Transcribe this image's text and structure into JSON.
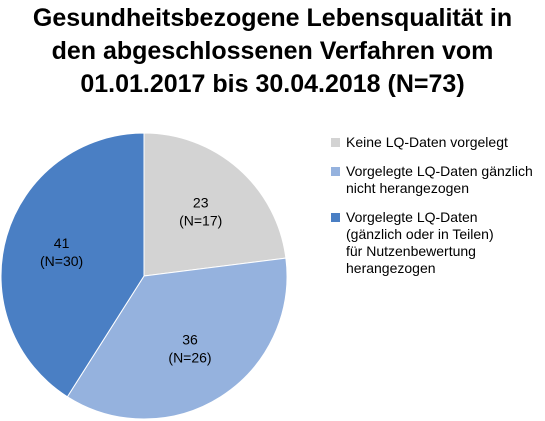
{
  "title_lines": [
    "Gesundheitsbezogene Lebensqualität in",
    "den abgeschlossenen Verfahren vom",
    "01.01.2017 bis 30.04.2018 (N=73)"
  ],
  "chart_data": {
    "type": "pie",
    "title": "Gesundheitsbezogene Lebensqualität in den abgeschlossenen Verfahren vom 01.01.2017 bis 30.04.2018 (N=73)",
    "start_angle_deg": 0,
    "direction": "clockwise",
    "legend_position": "right",
    "slices": [
      {
        "label": "Keine LQ-Daten vorgelegt",
        "value": 23,
        "count_label": "(N=17)",
        "color": "#d3d3d3"
      },
      {
        "label": "Vorgelegte LQ-Daten gänzlich\nnicht herangezogen",
        "value": 36,
        "count_label": "(N=26)",
        "color": "#95b2de"
      },
      {
        "label": "Vorgelegte LQ-Daten\n(gänzlich oder in Teilen)\nfür Nutzenbewertung\nherangezogen",
        "value": 41,
        "count_label": "(N=30)",
        "color": "#4a7fc4"
      }
    ]
  }
}
